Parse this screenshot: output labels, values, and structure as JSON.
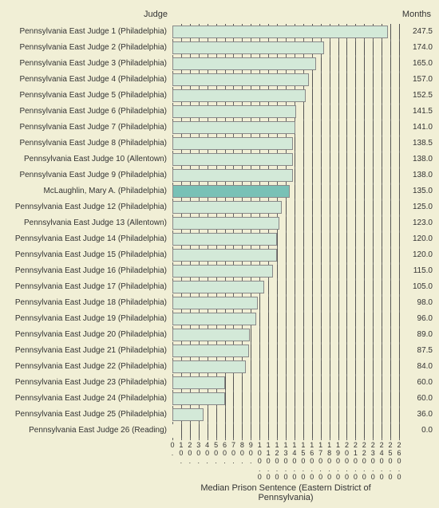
{
  "chart": {
    "type": "bar-horizontal",
    "background_color": "#f1efd6",
    "header_judge": "Judge",
    "header_months": "Months",
    "x_title": "Median Prison Sentence (Eastern District of Pennsylvania)",
    "xlim": [
      0,
      260
    ],
    "xtick_step": 10,
    "bar_default_color": "#d3e9d8",
    "bar_highlight_color": "#79c1b6",
    "bar_border_color": "#888888",
    "grid_color": "#555555",
    "label_fontsize": 10,
    "header_fontsize": 11,
    "tick_fontsize": 9,
    "rows": [
      {
        "label": "Pennsylvania East Judge 1 (Philadelphia)",
        "value": 247.5,
        "highlight": false
      },
      {
        "label": "Pennsylvania East Judge 2 (Philadelphia)",
        "value": 174.0,
        "highlight": false
      },
      {
        "label": "Pennsylvania East Judge 3 (Philadelphia)",
        "value": 165.0,
        "highlight": false
      },
      {
        "label": "Pennsylvania East Judge 4 (Philadelphia)",
        "value": 157.0,
        "highlight": false
      },
      {
        "label": "Pennsylvania East Judge 5 (Philadelphia)",
        "value": 152.5,
        "highlight": false
      },
      {
        "label": "Pennsylvania East Judge 6 (Philadelphia)",
        "value": 141.5,
        "highlight": false
      },
      {
        "label": "Pennsylvania East Judge 7 (Philadelphia)",
        "value": 141.0,
        "highlight": false
      },
      {
        "label": "Pennsylvania East Judge 8 (Philadelphia)",
        "value": 138.5,
        "highlight": false
      },
      {
        "label": "Pennsylvania East Judge 10 (Allentown)",
        "value": 138.0,
        "highlight": false
      },
      {
        "label": "Pennsylvania East Judge 9 (Philadelphia)",
        "value": 138.0,
        "highlight": false
      },
      {
        "label": "McLaughlin, Mary A. (Philadelphia)",
        "value": 135.0,
        "highlight": true
      },
      {
        "label": "Pennsylvania East Judge 12 (Philadelphia)",
        "value": 125.0,
        "highlight": false
      },
      {
        "label": "Pennsylvania East Judge 13 (Allentown)",
        "value": 123.0,
        "highlight": false
      },
      {
        "label": "Pennsylvania East Judge 14 (Philadelphia)",
        "value": 120.0,
        "highlight": false
      },
      {
        "label": "Pennsylvania East Judge 15 (Philadelphia)",
        "value": 120.0,
        "highlight": false
      },
      {
        "label": "Pennsylvania East Judge 16 (Philadelphia)",
        "value": 115.0,
        "highlight": false
      },
      {
        "label": "Pennsylvania East Judge 17 (Philadelphia)",
        "value": 105.0,
        "highlight": false
      },
      {
        "label": "Pennsylvania East Judge 18 (Philadelphia)",
        "value": 98.0,
        "highlight": false
      },
      {
        "label": "Pennsylvania East Judge 19 (Philadelphia)",
        "value": 96.0,
        "highlight": false
      },
      {
        "label": "Pennsylvania East Judge 20 (Philadelphia)",
        "value": 89.0,
        "highlight": false
      },
      {
        "label": "Pennsylvania East Judge 21 (Philadelphia)",
        "value": 87.5,
        "highlight": false
      },
      {
        "label": "Pennsylvania East Judge 22 (Philadelphia)",
        "value": 84.0,
        "highlight": false
      },
      {
        "label": "Pennsylvania East Judge 23 (Philadelphia)",
        "value": 60.0,
        "highlight": false
      },
      {
        "label": "Pennsylvania East Judge 24 (Philadelphia)",
        "value": 60.0,
        "highlight": false
      },
      {
        "label": "Pennsylvania East Judge 25 (Philadelphia)",
        "value": 36.0,
        "highlight": false
      },
      {
        "label": "Pennsylvania East Judge 26 (Reading)",
        "value": 0.0,
        "highlight": false
      }
    ],
    "xticks": [
      0,
      10,
      20,
      30,
      40,
      50,
      60,
      70,
      80,
      90,
      100,
      110,
      120,
      130,
      140,
      150,
      160,
      170,
      180,
      190,
      200,
      210,
      220,
      230,
      240,
      250,
      260
    ],
    "xtick_labels": [
      "0.",
      "10.",
      "20.",
      "30.",
      "40.",
      "50.",
      "60.",
      "70.",
      "80.",
      "90.",
      "100.0",
      "110.0",
      "120.0",
      "130.0",
      "140.0",
      "150.0",
      "160.0",
      "170.0",
      "180.0",
      "190.0",
      "200.0",
      "210.0",
      "220.0",
      "230.0",
      "240.0",
      "250.0",
      "260.0"
    ]
  }
}
